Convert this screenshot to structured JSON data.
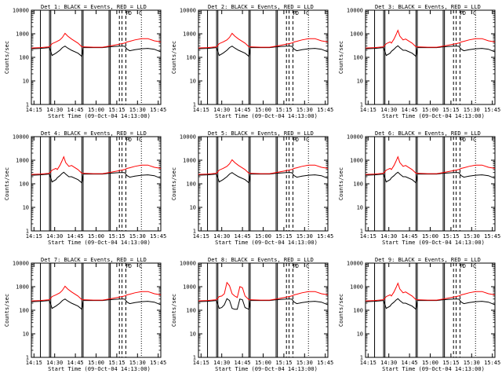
{
  "chart_data": [
    {
      "type": "line",
      "title": "Det 1: BLACK = Events, RED = LLD",
      "xlabel": "Start Time (09-Oct-04 14:13:00)",
      "ylabel": "Counts/sec",
      "yscale": "log",
      "ylim": [
        1,
        10000
      ],
      "xlim": [
        0,
        100
      ],
      "y_ticks": [
        "1",
        "10",
        "100",
        "1000",
        "10000"
      ],
      "x_ticks": [
        "14:15",
        "14:30",
        "14:45",
        "15:00",
        "15:15",
        "15:30",
        "15:45"
      ],
      "flare_letters": [
        "P",
        "D",
        "C"
      ],
      "peak_variant": "small",
      "series": [
        {
          "name": "Events",
          "color": "#000000"
        },
        {
          "name": "LLD",
          "color": "#ff0000"
        }
      ]
    },
    {
      "type": "line",
      "title": "Det 2: BLACK = Events, RED = LLD",
      "xlabel": "Start Time (09-Oct-04 14:13:00)",
      "ylabel": "Counts/sec",
      "yscale": "log",
      "ylim": [
        1,
        10000
      ],
      "xlim": [
        0,
        100
      ],
      "y_ticks": [
        "1",
        "10",
        "100",
        "1000",
        "10000"
      ],
      "x_ticks": [
        "14:15",
        "14:30",
        "14:45",
        "15:00",
        "15:15",
        "15:30",
        "15:45"
      ],
      "flare_letters": [
        "P",
        "D",
        "C"
      ],
      "peak_variant": "small",
      "series": [
        {
          "name": "Events",
          "color": "#000000"
        },
        {
          "name": "LLD",
          "color": "#ff0000"
        }
      ]
    },
    {
      "type": "line",
      "title": "Det 3: BLACK = Events, RED = LLD",
      "xlabel": "Start Time (09-Oct-04 14:13:00)",
      "ylabel": "Counts/sec",
      "yscale": "log",
      "ylim": [
        1,
        10000
      ],
      "xlim": [
        0,
        100
      ],
      "y_ticks": [
        "1",
        "10",
        "100",
        "1000",
        "10000"
      ],
      "x_ticks": [
        "14:15",
        "14:30",
        "14:45",
        "15:00",
        "15:15",
        "15:30",
        "15:45"
      ],
      "flare_letters": [
        "P",
        "D",
        "C"
      ],
      "peak_variant": "spike",
      "series": [
        {
          "name": "Events",
          "color": "#000000"
        },
        {
          "name": "LLD",
          "color": "#ff0000"
        }
      ]
    },
    {
      "type": "line",
      "title": "Det 4: BLACK = Events, RED = LLD",
      "xlabel": "Start Time (09-Oct-04 14:13:00)",
      "ylabel": "Counts/sec",
      "yscale": "log",
      "ylim": [
        1,
        10000
      ],
      "xlim": [
        0,
        100
      ],
      "y_ticks": [
        "1",
        "10",
        "100",
        "1000",
        "10000"
      ],
      "x_ticks": [
        "14:15",
        "14:30",
        "14:45",
        "15:00",
        "15:15",
        "15:30",
        "15:45"
      ],
      "flare_letters": [
        "P",
        "D",
        "C"
      ],
      "peak_variant": "spike",
      "series": [
        {
          "name": "Events",
          "color": "#000000"
        },
        {
          "name": "LLD",
          "color": "#ff0000"
        }
      ]
    },
    {
      "type": "line",
      "title": "Det 5: BLACK = Events, RED = LLD",
      "xlabel": "Start Time (09-Oct-04 14:13:00)",
      "ylabel": "Counts/sec",
      "yscale": "log",
      "ylim": [
        1,
        10000
      ],
      "xlim": [
        0,
        100
      ],
      "y_ticks": [
        "1",
        "10",
        "100",
        "1000",
        "10000"
      ],
      "x_ticks": [
        "14:15",
        "14:30",
        "14:45",
        "15:00",
        "15:15",
        "15:30",
        "15:45"
      ],
      "flare_letters": [
        "P",
        "D",
        "C"
      ],
      "peak_variant": "small",
      "series": [
        {
          "name": "Events",
          "color": "#000000"
        },
        {
          "name": "LLD",
          "color": "#ff0000"
        }
      ]
    },
    {
      "type": "line",
      "title": "Det 6: BLACK = Events, RED = LLD",
      "xlabel": "Start Time (09-Oct-04 14:13:00)",
      "ylabel": "Counts/sec",
      "yscale": "log",
      "ylim": [
        1,
        10000
      ],
      "xlim": [
        0,
        100
      ],
      "y_ticks": [
        "1",
        "10",
        "100",
        "1000",
        "10000"
      ],
      "x_ticks": [
        "14:15",
        "14:30",
        "14:45",
        "15:00",
        "15:15",
        "15:30",
        "15:45"
      ],
      "flare_letters": [
        "P",
        "D",
        "C"
      ],
      "peak_variant": "spike",
      "series": [
        {
          "name": "Events",
          "color": "#000000"
        },
        {
          "name": "LLD",
          "color": "#ff0000"
        }
      ]
    },
    {
      "type": "line",
      "title": "Det 7: BLACK = Events, RED = LLD",
      "xlabel": "Start Time (09-Oct-04 14:13:00)",
      "ylabel": "Counts/sec",
      "yscale": "log",
      "ylim": [
        1,
        10000
      ],
      "xlim": [
        0,
        100
      ],
      "y_ticks": [
        "1",
        "10",
        "100",
        "1000",
        "10000"
      ],
      "x_ticks": [
        "14:15",
        "14:30",
        "14:45",
        "15:00",
        "15:15",
        "15:30",
        "15:45"
      ],
      "flare_letters": [
        "P",
        "D",
        "C"
      ],
      "peak_variant": "small",
      "series": [
        {
          "name": "Events",
          "color": "#000000"
        },
        {
          "name": "LLD",
          "color": "#ff0000"
        }
      ]
    },
    {
      "type": "line",
      "title": "Det 8: BLACK = Events, RED = LLD",
      "xlabel": "Start Time (09-Oct-04 14:13:00)",
      "ylabel": "Counts/sec",
      "yscale": "log",
      "ylim": [
        1,
        10000
      ],
      "xlim": [
        0,
        100
      ],
      "y_ticks": [
        "1",
        "10",
        "100",
        "1000",
        "10000"
      ],
      "x_ticks": [
        "14:15",
        "14:30",
        "14:45",
        "15:00",
        "15:15",
        "15:30",
        "15:45"
      ],
      "flare_letters": [
        "P",
        "D",
        "C"
      ],
      "peak_variant": "double",
      "series": [
        {
          "name": "Events",
          "color": "#000000"
        },
        {
          "name": "LLD",
          "color": "#ff0000"
        }
      ]
    },
    {
      "type": "line",
      "title": "Det 9: BLACK = Events, RED = LLD",
      "xlabel": "Start Time (09-Oct-04 14:13:00)",
      "ylabel": "Counts/sec",
      "yscale": "log",
      "ylim": [
        1,
        10000
      ],
      "xlim": [
        0,
        100
      ],
      "y_ticks": [
        "1",
        "10",
        "100",
        "1000",
        "10000"
      ],
      "x_ticks": [
        "14:15",
        "14:30",
        "14:45",
        "15:00",
        "15:15",
        "15:30",
        "15:45"
      ],
      "flare_letters": [
        "P",
        "D",
        "C"
      ],
      "peak_variant": "spike",
      "series": [
        {
          "name": "Events",
          "color": "#000000"
        },
        {
          "name": "LLD",
          "color": "#ff0000"
        }
      ]
    }
  ],
  "shared_profile": {
    "red_base": [
      [
        0,
        250
      ],
      [
        7,
        260
      ],
      [
        14,
        280
      ],
      [
        16,
        380
      ],
      [
        19,
        450
      ],
      [
        22,
        550
      ],
      [
        24,
        700
      ],
      [
        26,
        1050
      ],
      [
        28,
        800
      ],
      [
        31,
        600
      ],
      [
        36,
        400
      ],
      [
        39,
        280
      ],
      [
        40,
        280
      ],
      [
        48,
        270
      ],
      [
        55,
        270
      ],
      [
        60,
        300
      ],
      [
        68,
        360
      ],
      [
        72,
        400
      ],
      [
        74,
        450
      ],
      [
        76,
        480
      ],
      [
        80,
        550
      ],
      [
        85,
        620
      ],
      [
        90,
        620
      ],
      [
        95,
        500
      ],
      [
        100,
        450
      ]
    ],
    "black_base": [
      [
        0,
        230
      ],
      [
        7,
        240
      ],
      [
        14,
        260
      ],
      [
        16,
        120
      ],
      [
        19,
        150
      ],
      [
        22,
        200
      ],
      [
        24,
        260
      ],
      [
        26,
        300
      ],
      [
        28,
        250
      ],
      [
        31,
        200
      ],
      [
        36,
        150
      ],
      [
        39,
        110
      ],
      [
        40,
        260
      ],
      [
        48,
        260
      ],
      [
        55,
        260
      ],
      [
        60,
        280
      ],
      [
        68,
        300
      ],
      [
        72,
        300
      ],
      [
        74,
        220
      ],
      [
        76,
        190
      ],
      [
        80,
        210
      ],
      [
        85,
        230
      ],
      [
        90,
        240
      ],
      [
        95,
        220
      ],
      [
        100,
        170
      ]
    ],
    "spike_red": [
      [
        20,
        400
      ],
      [
        22,
        600
      ],
      [
        23.5,
        900
      ],
      [
        25,
        1400
      ],
      [
        26.5,
        800
      ],
      [
        29,
        550
      ]
    ],
    "spike_black": [
      [
        20,
        180
      ],
      [
        22,
        220
      ],
      [
        23.5,
        270
      ],
      [
        25,
        310
      ],
      [
        26.5,
        260
      ],
      [
        29,
        200
      ]
    ],
    "double_red": [
      [
        18,
        400
      ],
      [
        20,
        500
      ],
      [
        22,
        1500
      ],
      [
        24,
        1100
      ],
      [
        26,
        500
      ],
      [
        28,
        400
      ],
      [
        30,
        350
      ],
      [
        32,
        1000
      ],
      [
        34,
        900
      ],
      [
        36,
        400
      ]
    ],
    "double_black": [
      [
        18,
        130
      ],
      [
        20,
        170
      ],
      [
        22,
        310
      ],
      [
        24,
        260
      ],
      [
        26,
        120
      ],
      [
        28,
        110
      ],
      [
        30,
        110
      ],
      [
        32,
        300
      ],
      [
        34,
        280
      ],
      [
        36,
        130
      ]
    ],
    "solid_markers": [
      7,
      14,
      15,
      39,
      40,
      60,
      61
    ],
    "dashed_markers": [
      68,
      70,
      73
    ],
    "dotted_markers": [
      85
    ]
  }
}
